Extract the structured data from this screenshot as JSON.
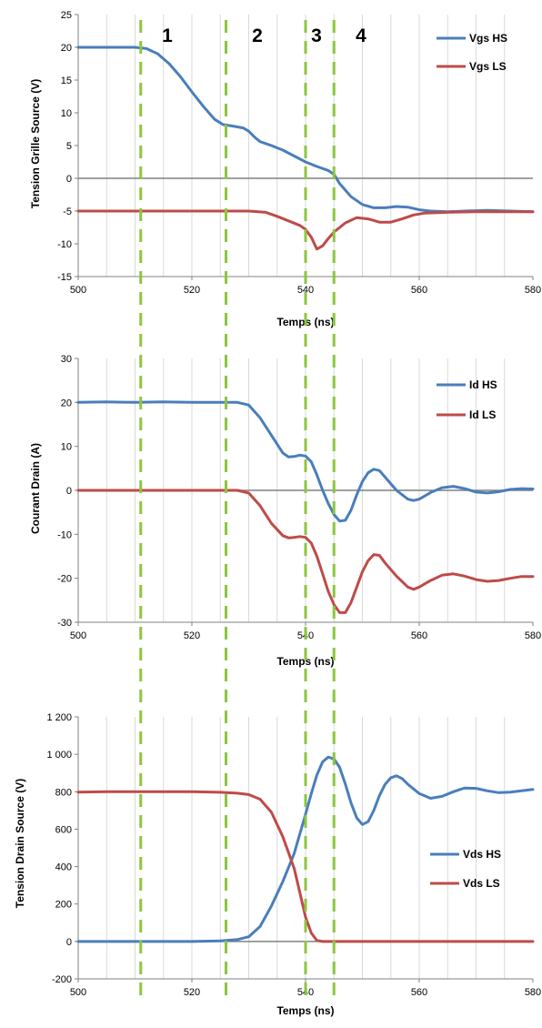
{
  "chart_data": [
    {
      "type": "line",
      "xlabel": "Temps (ns)",
      "ylabel": "Tension Grille Source (V)",
      "xlim": [
        500,
        580
      ],
      "ylim": [
        -15,
        25
      ],
      "x_ticks": [
        500,
        520,
        540,
        560,
        580
      ],
      "y_ticks": [
        -15,
        -10,
        -5,
        0,
        5,
        10,
        15,
        20,
        25
      ],
      "y_tick_labels": [
        "-15",
        "-10",
        "-5",
        "0",
        "5",
        "10",
        "15",
        "20",
        "25"
      ],
      "grid": "vertical",
      "legend": "top-right",
      "series": [
        {
          "name": "Vgs HS",
          "color": "#4a7ebb",
          "points": [
            [
              500,
              20
            ],
            [
              505,
              20
            ],
            [
              510,
              20
            ],
            [
              512,
              19.8
            ],
            [
              514,
              19
            ],
            [
              516,
              17.5
            ],
            [
              518,
              15.5
            ],
            [
              520,
              13.2
            ],
            [
              522,
              11
            ],
            [
              524,
              9
            ],
            [
              525.5,
              8.2
            ],
            [
              527,
              8
            ],
            [
              529,
              7.7
            ],
            [
              530,
              7.2
            ],
            [
              531,
              6.3
            ],
            [
              532,
              5.6
            ],
            [
              534,
              5
            ],
            [
              536,
              4.3
            ],
            [
              538,
              3.4
            ],
            [
              540,
              2.5
            ],
            [
              542,
              1.8
            ],
            [
              544,
              1.2
            ],
            [
              545,
              0.6
            ],
            [
              546,
              -0.8
            ],
            [
              548,
              -2.8
            ],
            [
              550,
              -4
            ],
            [
              552,
              -4.5
            ],
            [
              554,
              -4.5
            ],
            [
              556,
              -4.3
            ],
            [
              558,
              -4.4
            ],
            [
              560,
              -4.8
            ],
            [
              562,
              -5
            ],
            [
              565,
              -5.1
            ],
            [
              568,
              -5
            ],
            [
              572,
              -4.9
            ],
            [
              576,
              -5
            ],
            [
              580,
              -5.1
            ]
          ]
        },
        {
          "name": "Vgs LS",
          "color": "#be4b48",
          "points": [
            [
              500,
              -5
            ],
            [
              505,
              -5
            ],
            [
              510,
              -5
            ],
            [
              515,
              -5
            ],
            [
              520,
              -5
            ],
            [
              525,
              -5
            ],
            [
              530,
              -5
            ],
            [
              533,
              -5.2
            ],
            [
              535,
              -5.8
            ],
            [
              537,
              -6.5
            ],
            [
              539,
              -7.2
            ],
            [
              540,
              -7.8
            ],
            [
              541,
              -9
            ],
            [
              542,
              -10.8
            ],
            [
              543,
              -10.3
            ],
            [
              544,
              -9.2
            ],
            [
              545,
              -8.2
            ],
            [
              547,
              -6.8
            ],
            [
              549,
              -6
            ],
            [
              551,
              -6.2
            ],
            [
              553,
              -6.7
            ],
            [
              555,
              -6.7
            ],
            [
              557,
              -6.2
            ],
            [
              559,
              -5.6
            ],
            [
              561,
              -5.3
            ],
            [
              565,
              -5.2
            ],
            [
              570,
              -5.1
            ],
            [
              575,
              -5.1
            ],
            [
              580,
              -5.1
            ]
          ]
        }
      ],
      "annotations": [
        "1",
        "2",
        "3",
        "4"
      ]
    },
    {
      "type": "line",
      "xlabel": "Temps (ns)",
      "ylabel": "Courant Drain (A)",
      "xlim": [
        500,
        580
      ],
      "ylim": [
        -30,
        30
      ],
      "x_ticks": [
        500,
        520,
        540,
        560,
        580
      ],
      "y_ticks": [
        -30,
        -20,
        -10,
        0,
        10,
        20,
        30
      ],
      "y_tick_labels": [
        "-30",
        "-20",
        "-10",
        "0",
        "10",
        "20",
        "30"
      ],
      "grid": "vertical",
      "legend": "top-right",
      "series": [
        {
          "name": "Id HS",
          "color": "#4a7ebb",
          "points": [
            [
              500,
              20
            ],
            [
              505,
              20.1
            ],
            [
              510,
              20
            ],
            [
              515,
              20.1
            ],
            [
              520,
              20
            ],
            [
              525,
              20
            ],
            [
              528,
              20
            ],
            [
              530,
              19.4
            ],
            [
              532,
              16.5
            ],
            [
              534,
              12.5
            ],
            [
              536,
              8.5
            ],
            [
              537,
              7.6
            ],
            [
              538,
              7.7
            ],
            [
              539,
              8
            ],
            [
              540,
              7.8
            ],
            [
              541,
              6.5
            ],
            [
              542,
              3.5
            ],
            [
              543,
              0
            ],
            [
              544,
              -3
            ],
            [
              545,
              -5.5
            ],
            [
              546,
              -7
            ],
            [
              547,
              -6.8
            ],
            [
              548,
              -4.5
            ],
            [
              549,
              -1
            ],
            [
              550,
              2
            ],
            [
              551,
              4
            ],
            [
              552,
              4.8
            ],
            [
              553,
              4.5
            ],
            [
              554,
              3
            ],
            [
              556,
              0
            ],
            [
              558,
              -2
            ],
            [
              559,
              -2.3
            ],
            [
              560,
              -2
            ],
            [
              562,
              -0.5
            ],
            [
              564,
              0.6
            ],
            [
              566,
              0.9
            ],
            [
              568,
              0.4
            ],
            [
              570,
              -0.4
            ],
            [
              572,
              -0.6
            ],
            [
              574,
              -0.3
            ],
            [
              576,
              0.2
            ],
            [
              578,
              0.4
            ],
            [
              580,
              0.3
            ]
          ]
        },
        {
          "name": "Id LS",
          "color": "#be4b48",
          "points": [
            [
              500,
              0
            ],
            [
              505,
              0
            ],
            [
              510,
              0
            ],
            [
              515,
              0
            ],
            [
              520,
              0
            ],
            [
              525,
              0
            ],
            [
              528,
              0
            ],
            [
              530,
              -0.6
            ],
            [
              532,
              -3.5
            ],
            [
              534,
              -7.5
            ],
            [
              536,
              -10.3
            ],
            [
              537,
              -10.8
            ],
            [
              538,
              -10.7
            ],
            [
              539,
              -10.5
            ],
            [
              540,
              -10.7
            ],
            [
              541,
              -12
            ],
            [
              542,
              -15
            ],
            [
              543,
              -19
            ],
            [
              544,
              -23
            ],
            [
              545,
              -26
            ],
            [
              546,
              -27.8
            ],
            [
              547,
              -27.8
            ],
            [
              548,
              -25.5
            ],
            [
              549,
              -22
            ],
            [
              550,
              -18.5
            ],
            [
              551,
              -16
            ],
            [
              552,
              -14.6
            ],
            [
              553,
              -14.8
            ],
            [
              554,
              -16.5
            ],
            [
              556,
              -19.5
            ],
            [
              558,
              -22
            ],
            [
              559,
              -22.5
            ],
            [
              560,
              -22
            ],
            [
              562,
              -20.5
            ],
            [
              564,
              -19.3
            ],
            [
              566,
              -19
            ],
            [
              568,
              -19.5
            ],
            [
              570,
              -20.3
            ],
            [
              572,
              -20.7
            ],
            [
              574,
              -20.5
            ],
            [
              576,
              -20
            ],
            [
              578,
              -19.6
            ],
            [
              580,
              -19.6
            ]
          ]
        }
      ]
    },
    {
      "type": "line",
      "xlabel": "Temps (ns)",
      "ylabel": "Tension Drain Source (V)",
      "xlim": [
        500,
        580
      ],
      "ylim": [
        -200,
        1200
      ],
      "x_ticks": [
        500,
        520,
        540,
        560,
        580
      ],
      "y_ticks": [
        -200,
        0,
        200,
        400,
        600,
        800,
        1000,
        1200
      ],
      "y_tick_labels": [
        "-200",
        "0",
        "200",
        "400",
        "600",
        "800",
        "1 000",
        "1 200"
      ],
      "grid": "vertical",
      "legend": "right",
      "series": [
        {
          "name": "Vds HS",
          "color": "#4a7ebb",
          "points": [
            [
              500,
              0
            ],
            [
              505,
              0
            ],
            [
              510,
              0
            ],
            [
              515,
              0
            ],
            [
              520,
              0
            ],
            [
              525,
              3
            ],
            [
              528,
              10
            ],
            [
              530,
              25
            ],
            [
              532,
              80
            ],
            [
              534,
              190
            ],
            [
              536,
              320
            ],
            [
              538,
              470
            ],
            [
              540,
              680
            ],
            [
              541,
              790
            ],
            [
              542,
              890
            ],
            [
              543,
              960
            ],
            [
              544,
              985
            ],
            [
              545,
              975
            ],
            [
              546,
              930
            ],
            [
              547,
              840
            ],
            [
              548,
              740
            ],
            [
              549,
              660
            ],
            [
              550,
              625
            ],
            [
              551,
              640
            ],
            [
              552,
              700
            ],
            [
              553,
              780
            ],
            [
              554,
              840
            ],
            [
              555,
              875
            ],
            [
              556,
              885
            ],
            [
              557,
              870
            ],
            [
              558,
              840
            ],
            [
              560,
              790
            ],
            [
              562,
              765
            ],
            [
              564,
              775
            ],
            [
              566,
              800
            ],
            [
              568,
              820
            ],
            [
              570,
              818
            ],
            [
              572,
              805
            ],
            [
              574,
              795
            ],
            [
              576,
              798
            ],
            [
              578,
              805
            ],
            [
              580,
              812
            ]
          ]
        },
        {
          "name": "Vds LS",
          "color": "#be4b48",
          "points": [
            [
              500,
              798
            ],
            [
              505,
              800
            ],
            [
              510,
              800
            ],
            [
              515,
              800
            ],
            [
              520,
              800
            ],
            [
              525,
              797
            ],
            [
              528,
              792
            ],
            [
              530,
              785
            ],
            [
              532,
              760
            ],
            [
              534,
              690
            ],
            [
              536,
              560
            ],
            [
              538,
              390
            ],
            [
              539,
              260
            ],
            [
              540,
              130
            ],
            [
              541,
              45
            ],
            [
              542,
              5
            ],
            [
              543,
              0
            ],
            [
              545,
              0
            ],
            [
              550,
              0
            ],
            [
              555,
              0
            ],
            [
              560,
              0
            ],
            [
              570,
              0
            ],
            [
              580,
              0
            ]
          ]
        }
      ]
    }
  ],
  "phase_markers": [
    511,
    526,
    540,
    545
  ]
}
